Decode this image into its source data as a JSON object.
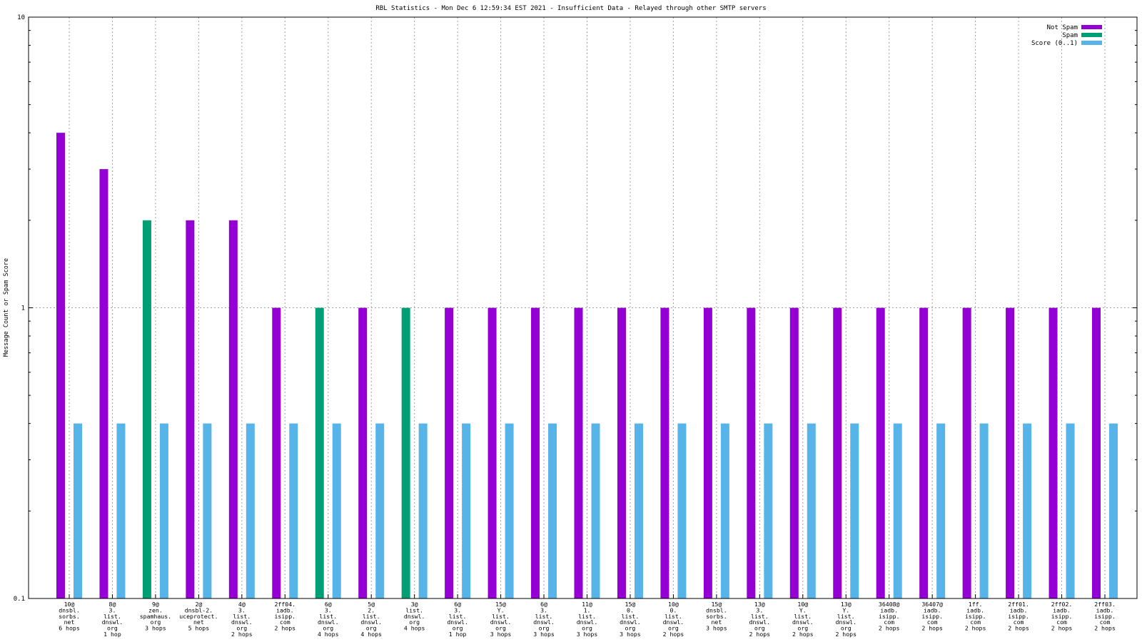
{
  "chart_data": {
    "type": "bar",
    "title": "RBL Statistics - Mon Dec  6 12:59:34 EST 2021 - Insufficient Data - Relayed through other SMTP servers",
    "ylabel": "Message Count or Spam Score",
    "xlabel": "",
    "yscale": "log",
    "ylim": [
      0.1,
      10
    ],
    "yticks": [
      "0.1",
      "1",
      "10"
    ],
    "grid": true,
    "legend_position": "top-right",
    "categories": [
      "10@|dnsbl.|sorbs.|net|6 hops",
      "8@|3.|list.|dnswl.|org|1 hop",
      "9@|zen.|spamhaus.|org|3 hops",
      "2@|dnsbl-2.|uceprotect.|net|5 hops",
      "4@|3.|list.|dnswl.|org|2 hops",
      "2ff04.|iadb.|isipp.|com|2 hops",
      "6@|3.|list.|dnswl.|org|4 hops",
      "5@|2.|list.|dnswl.|org|4 hops",
      "3@|list.|dnswl.|org|4 hops",
      "6@|3.|list.|dnswl.|org|1 hop",
      "15@|Y.|list.|dnswl.|org|3 hops",
      "6@|3.|list.|dnswl.|org|3 hops",
      "11@|1.|list.|dnswl.|org|3 hops",
      "15@|0.|list.|dnswl.|org|3 hops",
      "10@|0.|list.|dnswl.|org|2 hops",
      "15@|dnsbl.|sorbs.|net|3 hops",
      "13@|3.|list.|dnswl.|org|2 hops",
      "10@|Y.|list.|dnswl.|org|2 hops",
      "13@|Y.|list.|dnswl.|org|2 hops",
      "36408@|iadb.|isipp.|com|2 hops",
      "36407@|iadb.|isipp.|com|2 hops",
      "1ff.|iadb.|isipp.|com|2 hops",
      "2ff01.|iadb.|isipp.|com|2 hops",
      "2ff02.|iadb.|isipp.|com|2 hops",
      "2ff03.|iadb.|isipp.|com|2 hops"
    ],
    "series": [
      {
        "name": "Not Spam",
        "color": "#9400d3",
        "values": [
          4,
          3,
          null,
          2,
          2,
          1,
          null,
          1,
          null,
          1,
          1,
          1,
          1,
          1,
          1,
          1,
          1,
          1,
          1,
          1,
          1,
          1,
          1,
          1,
          1
        ]
      },
      {
        "name": "Spam",
        "color": "#009e73",
        "values": [
          null,
          null,
          2,
          null,
          null,
          null,
          1,
          null,
          1,
          null,
          null,
          null,
          null,
          null,
          null,
          null,
          null,
          null,
          null,
          null,
          null,
          null,
          null,
          null,
          null
        ]
      },
      {
        "name": "Score (0..1)",
        "color": "#56b4e9",
        "values": [
          0.4,
          0.4,
          0.4,
          0.4,
          0.4,
          0.4,
          0.4,
          0.4,
          0.4,
          0.4,
          0.4,
          0.4,
          0.4,
          0.4,
          0.4,
          0.4,
          0.4,
          0.4,
          0.4,
          0.4,
          0.4,
          0.4,
          0.4,
          0.4,
          0.4
        ]
      }
    ]
  }
}
